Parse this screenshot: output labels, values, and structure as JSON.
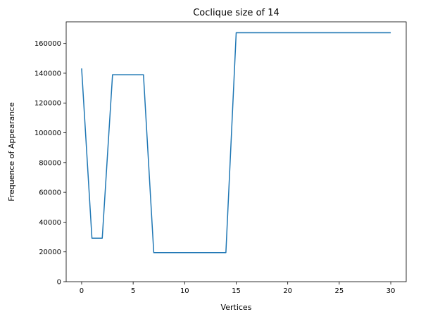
{
  "chart_data": {
    "type": "line",
    "title": "Coclique size of 14",
    "xlabel": "Vertices",
    "ylabel": "Frequence of Appearance",
    "xlim": [
      -1.5,
      31.5
    ],
    "ylim": [
      0,
      174500
    ],
    "xticks": [
      0,
      5,
      10,
      15,
      20,
      25,
      30
    ],
    "yticks": [
      0,
      20000,
      40000,
      60000,
      80000,
      100000,
      120000,
      140000,
      160000
    ],
    "grid": false,
    "series": [
      {
        "color": "#1f77b4",
        "x": [
          0,
          1,
          2,
          3,
          4,
          5,
          6,
          7,
          8,
          9,
          10,
          11,
          12,
          13,
          14,
          15,
          16,
          17,
          18,
          19,
          20,
          21,
          22,
          23,
          24,
          25,
          26,
          27,
          28,
          29,
          30
        ],
        "y": [
          143200,
          29200,
          29200,
          139000,
          139000,
          139000,
          139000,
          19500,
          19500,
          19500,
          19500,
          19500,
          19500,
          19500,
          19500,
          167200,
          167200,
          167200,
          167200,
          167200,
          167200,
          167200,
          167200,
          167200,
          167200,
          167200,
          167200,
          167200,
          167200,
          167200,
          167200
        ]
      }
    ]
  }
}
